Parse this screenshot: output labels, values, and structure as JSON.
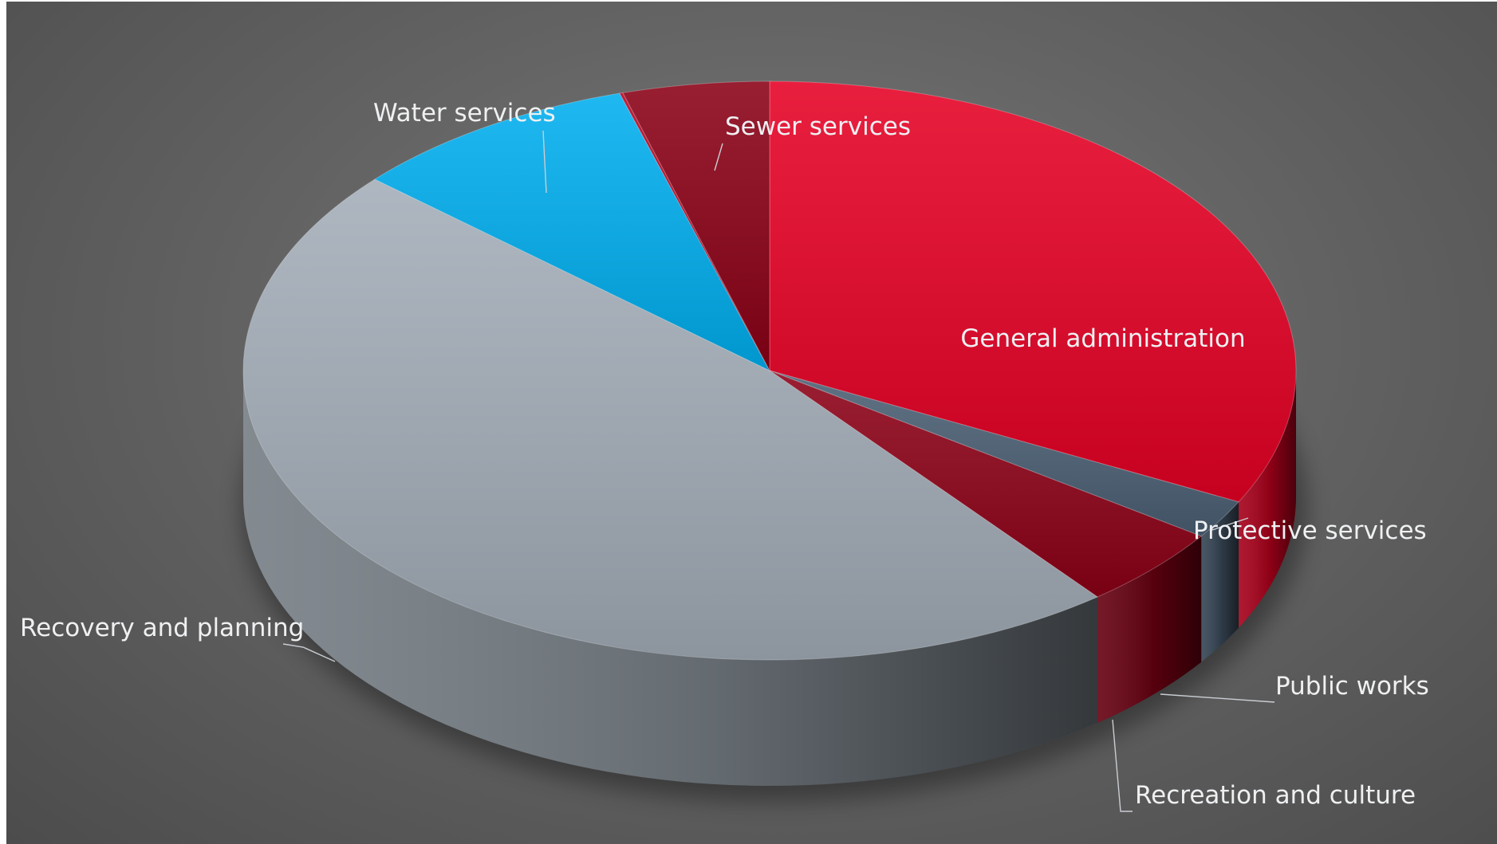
{
  "chart_data": {
    "type": "pie",
    "title": "",
    "style": "3d",
    "slices": [
      {
        "label": "General administration",
        "value": 32.5,
        "color": "#e60024"
      },
      {
        "label": "Protective services",
        "value": 2.2,
        "color": "#4a5f73"
      },
      {
        "label": "Public works",
        "value": 4.6,
        "color": "#8c0016"
      },
      {
        "label": "Recovery and planning",
        "value": 47.2,
        "color": "#a3adb8"
      },
      {
        "label": "Water services",
        "value": 8.9,
        "color": "#00aeef"
      },
      {
        "label": "Recreation and culture",
        "value": 0.1,
        "color": "#b8001e"
      },
      {
        "label": "Sewer services",
        "value": 4.5,
        "color": "#8a0015"
      }
    ],
    "legend": "none"
  }
}
